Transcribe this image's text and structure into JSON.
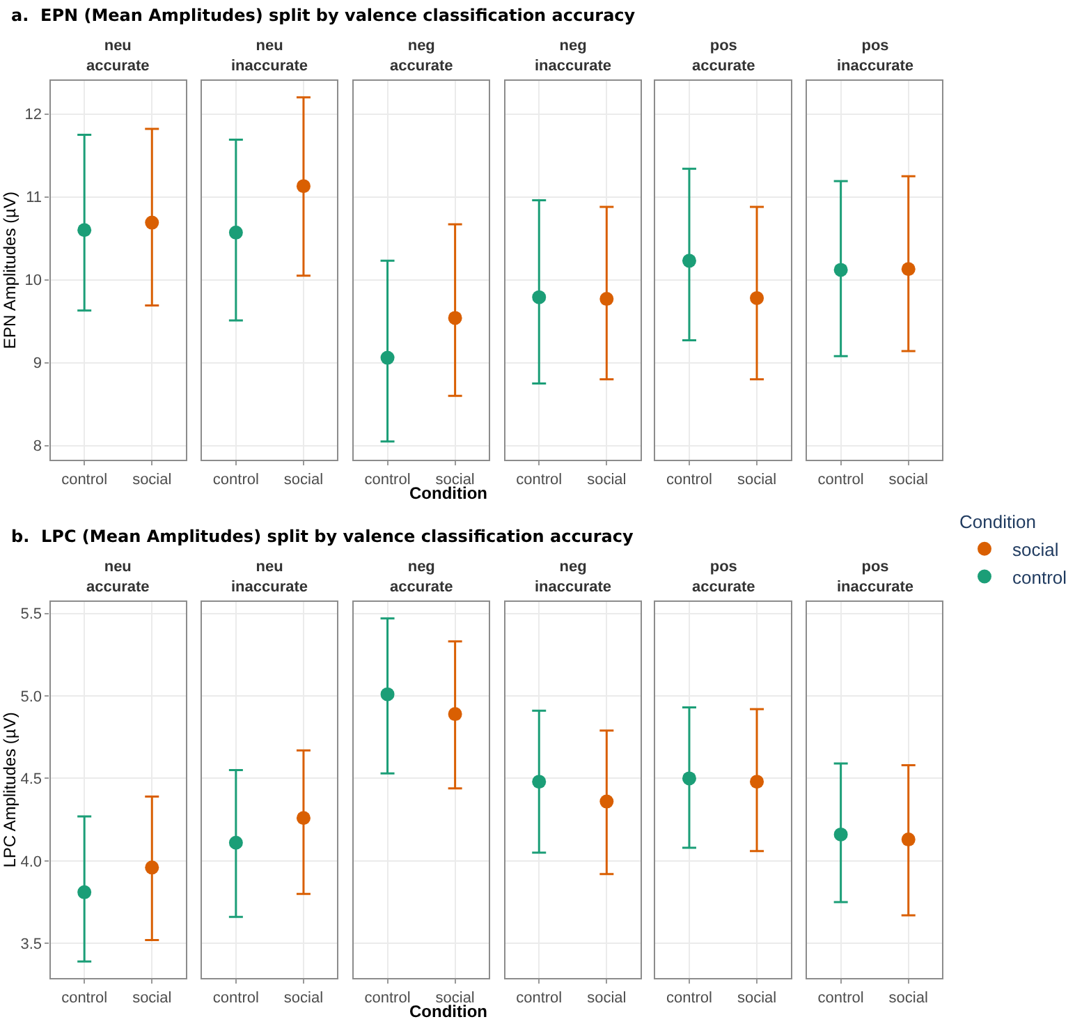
{
  "chart_data": [
    {
      "type": "scatter",
      "title": "neu\naccurate",
      "ylabel": "EPN Amplitudes (µV)",
      "annotations": [
        "a.  EPN (Mean Amplitudes) split by valence classification accuracy"
      ],
      "categories": [
        "control",
        "social"
      ],
      "ylim": [
        7.83,
        12.4
      ],
      "yticks": [
        8,
        9,
        10,
        11,
        12
      ],
      "grid": true,
      "marker": "circle",
      "series": [
        {
          "color": "#1b9e77",
          "values": [
            10.6,
            null
          ],
          "errors": [
            [
              9.63,
              11.75
            ],
            null
          ]
        },
        {
          "color": "#d95f02",
          "values": [
            null,
            10.69
          ],
          "errors": [
            null,
            [
              9.69,
              11.82
            ]
          ]
        }
      ]
    },
    {
      "type": "scatter",
      "title": "neu\ninaccurate",
      "categories": [
        "control",
        "social"
      ],
      "ylim": [
        7.83,
        12.4
      ],
      "yticks": [
        8,
        9,
        10,
        11,
        12
      ],
      "tick_labels": "x",
      "grid": true,
      "marker": "circle",
      "series": [
        {
          "color": "#1b9e77",
          "values": [
            10.57,
            null
          ],
          "errors": [
            [
              9.51,
              11.69
            ],
            null
          ]
        },
        {
          "color": "#d95f02",
          "values": [
            null,
            11.13
          ],
          "errors": [
            null,
            [
              10.05,
              12.2
            ]
          ]
        }
      ]
    },
    {
      "type": "scatter",
      "title": "neg\naccurate",
      "xlabel": "Condition",
      "categories": [
        "control",
        "social"
      ],
      "ylim": [
        7.83,
        12.4
      ],
      "yticks": [
        8,
        9,
        10,
        11,
        12
      ],
      "tick_labels": "x",
      "grid": true,
      "marker": "circle",
      "series": [
        {
          "color": "#1b9e77",
          "values": [
            9.06,
            null
          ],
          "errors": [
            [
              8.05,
              10.23
            ],
            null
          ]
        },
        {
          "color": "#d95f02",
          "values": [
            null,
            9.54
          ],
          "errors": [
            null,
            [
              8.6,
              10.67
            ]
          ]
        }
      ]
    },
    {
      "type": "scatter",
      "title": "neg\ninaccurate",
      "categories": [
        "control",
        "social"
      ],
      "ylim": [
        7.83,
        12.4
      ],
      "yticks": [
        8,
        9,
        10,
        11,
        12
      ],
      "tick_labels": "x",
      "grid": true,
      "marker": "circle",
      "series": [
        {
          "color": "#1b9e77",
          "values": [
            9.79,
            null
          ],
          "errors": [
            [
              8.75,
              10.96
            ],
            null
          ]
        },
        {
          "color": "#d95f02",
          "values": [
            null,
            9.77
          ],
          "errors": [
            null,
            [
              8.8,
              10.88
            ]
          ]
        }
      ]
    },
    {
      "type": "scatter",
      "title": "pos\naccurate",
      "categories": [
        "control",
        "social"
      ],
      "ylim": [
        7.83,
        12.4
      ],
      "yticks": [
        8,
        9,
        10,
        11,
        12
      ],
      "tick_labels": "x",
      "grid": true,
      "marker": "circle",
      "series": [
        {
          "color": "#1b9e77",
          "values": [
            10.23,
            null
          ],
          "errors": [
            [
              9.27,
              11.34
            ],
            null
          ]
        },
        {
          "color": "#d95f02",
          "values": [
            null,
            9.78
          ],
          "errors": [
            null,
            [
              8.8,
              10.88
            ]
          ]
        }
      ]
    },
    {
      "type": "scatter",
      "title": "pos\ninaccurate",
      "categories": [
        "control",
        "social"
      ],
      "ylim": [
        7.83,
        12.4
      ],
      "yticks": [
        8,
        9,
        10,
        11,
        12
      ],
      "tick_labels": "x",
      "grid": true,
      "marker": "circle",
      "series": [
        {
          "color": "#1b9e77",
          "values": [
            10.12,
            null
          ],
          "errors": [
            [
              9.08,
              11.19
            ],
            null
          ]
        },
        {
          "color": "#d95f02",
          "values": [
            null,
            10.13
          ],
          "errors": [
            null,
            [
              9.14,
              11.25
            ]
          ]
        }
      ]
    },
    {
      "type": "scatter",
      "title": "neu\naccurate",
      "ylabel": "LPC Amplitudes (µV)",
      "annotations": [
        "b.  LPC (Mean Amplitudes) split by valence classification accuracy"
      ],
      "categories": [
        "control",
        "social"
      ],
      "ylim": [
        3.29,
        5.57
      ],
      "yticks": [
        3.5,
        {
          "value": 4,
          "label": "4.0"
        },
        4.5,
        {
          "value": 5,
          "label": "5.0"
        },
        5.5
      ],
      "grid": true,
      "marker": "circle",
      "series": [
        {
          "color": "#1b9e77",
          "values": [
            3.81,
            null
          ],
          "errors": [
            [
              3.39,
              4.27
            ],
            null
          ]
        },
        {
          "color": "#d95f02",
          "values": [
            null,
            3.96
          ],
          "errors": [
            null,
            [
              3.52,
              4.39
            ]
          ]
        }
      ]
    },
    {
      "type": "scatter",
      "title": "neu\ninaccurate",
      "categories": [
        "control",
        "social"
      ],
      "ylim": [
        3.29,
        5.57
      ],
      "yticks": [
        3.5,
        4,
        4.5,
        5,
        5.5
      ],
      "tick_labels": "x",
      "grid": true,
      "marker": "circle",
      "series": [
        {
          "color": "#1b9e77",
          "values": [
            4.11,
            null
          ],
          "errors": [
            [
              3.66,
              4.55
            ],
            null
          ]
        },
        {
          "color": "#d95f02",
          "values": [
            null,
            4.26
          ],
          "errors": [
            null,
            [
              3.8,
              4.67
            ]
          ]
        }
      ]
    },
    {
      "type": "scatter",
      "title": "neg\naccurate",
      "xlabel": "Condition",
      "categories": [
        "control",
        "social"
      ],
      "ylim": [
        3.29,
        5.57
      ],
      "yticks": [
        3.5,
        4,
        4.5,
        5,
        5.5
      ],
      "tick_labels": "x",
      "grid": true,
      "marker": "circle",
      "series": [
        {
          "color": "#1b9e77",
          "values": [
            5.01,
            null
          ],
          "errors": [
            [
              4.53,
              5.47
            ],
            null
          ]
        },
        {
          "color": "#d95f02",
          "values": [
            null,
            4.89
          ],
          "errors": [
            null,
            [
              4.44,
              5.33
            ]
          ]
        }
      ]
    },
    {
      "type": "scatter",
      "title": "neg\ninaccurate",
      "categories": [
        "control",
        "social"
      ],
      "ylim": [
        3.29,
        5.57
      ],
      "yticks": [
        3.5,
        4,
        4.5,
        5,
        5.5
      ],
      "tick_labels": "x",
      "grid": true,
      "marker": "circle",
      "series": [
        {
          "color": "#1b9e77",
          "values": [
            4.48,
            null
          ],
          "errors": [
            [
              4.05,
              4.91
            ],
            null
          ]
        },
        {
          "color": "#d95f02",
          "values": [
            null,
            4.36
          ],
          "errors": [
            null,
            [
              3.92,
              4.79
            ]
          ]
        }
      ]
    },
    {
      "type": "scatter",
      "title": "pos\naccurate",
      "categories": [
        "control",
        "social"
      ],
      "ylim": [
        3.29,
        5.57
      ],
      "yticks": [
        3.5,
        4,
        4.5,
        5,
        5.5
      ],
      "tick_labels": "x",
      "grid": true,
      "marker": "circle",
      "series": [
        {
          "color": "#1b9e77",
          "values": [
            4.5,
            null
          ],
          "errors": [
            [
              4.08,
              4.93
            ],
            null
          ]
        },
        {
          "color": "#d95f02",
          "values": [
            null,
            4.48
          ],
          "errors": [
            null,
            [
              4.06,
              4.92
            ]
          ]
        }
      ]
    },
    {
      "type": "scatter",
      "title": "pos\ninaccurate",
      "legend": "right",
      "legend_title": "Condition",
      "categories": [
        "control",
        "social"
      ],
      "ylim": [
        3.29,
        5.57
      ],
      "yticks": [
        3.5,
        4,
        4.5,
        5,
        5.5
      ],
      "tick_labels": "x",
      "grid": true,
      "marker": "circle",
      "series": [
        {
          "name": "control",
          "color": "#1b9e77",
          "values": [
            4.16,
            null
          ],
          "errors": [
            [
              3.75,
              4.59
            ],
            null
          ]
        },
        {
          "name": "social",
          "color": "#d95f02",
          "values": [
            null,
            4.13
          ],
          "errors": [
            null,
            [
              3.67,
              4.58
            ]
          ]
        }
      ]
    }
  ]
}
